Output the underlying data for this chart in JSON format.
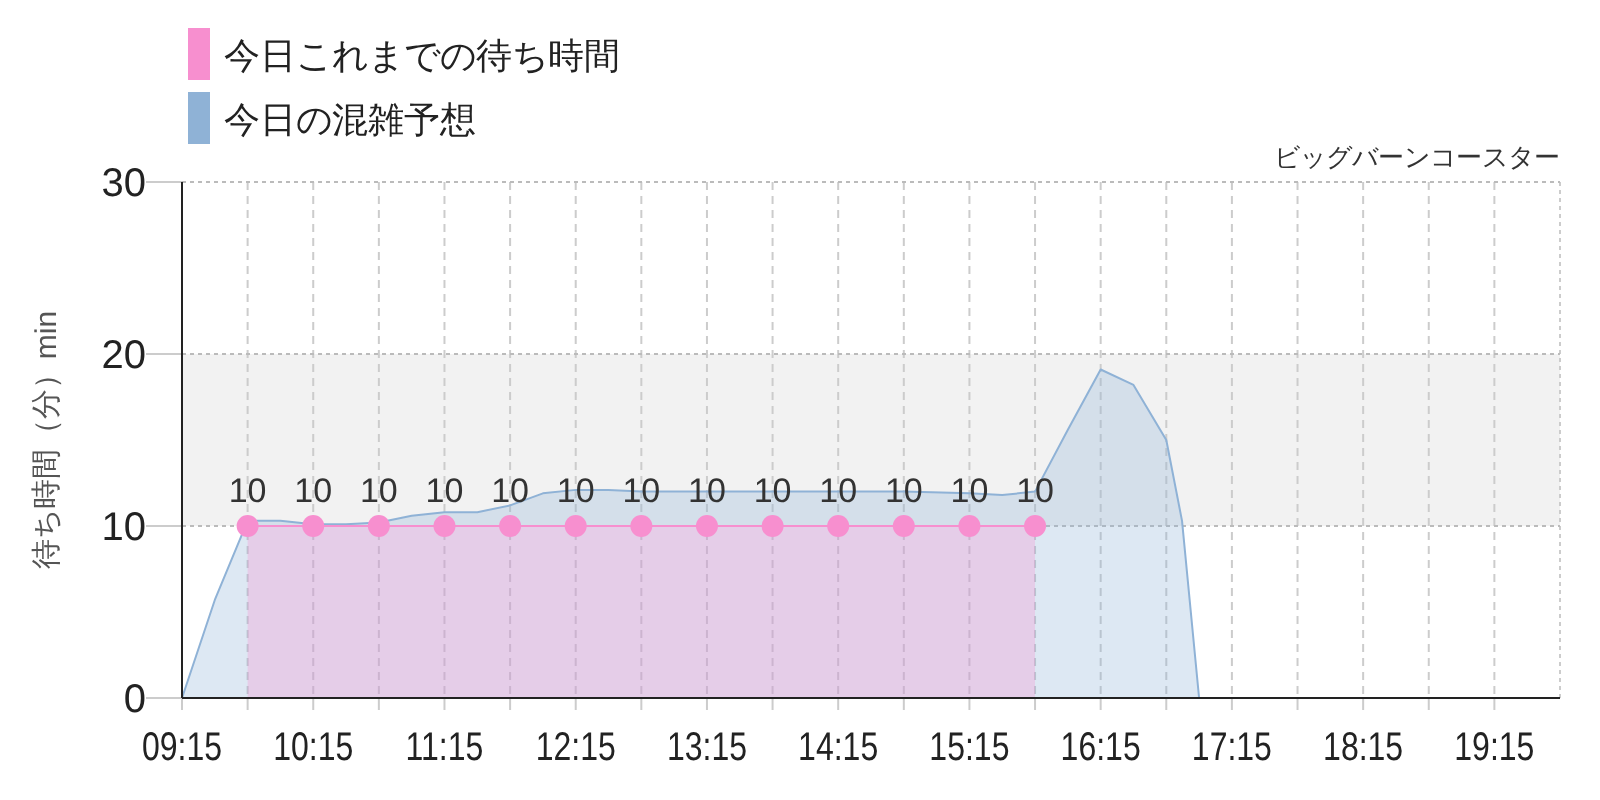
{
  "chart_data": {
    "type": "area",
    "subtitle": "ビッグバーンコースター",
    "ylabel": "待ち時間（分）min",
    "xlim": [
      9.25,
      19.75
    ],
    "ylim": [
      0,
      30
    ],
    "yticks": [
      0,
      10,
      20,
      30
    ],
    "xticks": [
      {
        "value": 9.25,
        "label": "09:15"
      },
      {
        "value": 9.75,
        "label": null
      },
      {
        "value": 10.25,
        "label": "10:15"
      },
      {
        "value": 10.75,
        "label": null
      },
      {
        "value": 11.25,
        "label": "11:15"
      },
      {
        "value": 11.75,
        "label": null
      },
      {
        "value": 12.25,
        "label": "12:15"
      },
      {
        "value": 12.75,
        "label": null
      },
      {
        "value": 13.25,
        "label": "13:15"
      },
      {
        "value": 13.75,
        "label": null
      },
      {
        "value": 14.25,
        "label": "14:15"
      },
      {
        "value": 14.75,
        "label": null
      },
      {
        "value": 15.25,
        "label": "15:15"
      },
      {
        "value": 15.75,
        "label": null
      },
      {
        "value": 16.25,
        "label": "16:15"
      },
      {
        "value": 16.75,
        "label": null
      },
      {
        "value": 17.25,
        "label": "17:15"
      },
      {
        "value": 17.75,
        "label": null
      },
      {
        "value": 18.25,
        "label": "18:15"
      },
      {
        "value": 18.75,
        "label": null
      },
      {
        "value": 19.25,
        "label": "19:15"
      }
    ],
    "grid": true,
    "legend": "top left",
    "bands": [
      {
        "axis": "y",
        "from": 10,
        "to": 20,
        "color": "#f2f2f2"
      }
    ],
    "series": [
      {
        "name": "今日の混雑予想",
        "color": "#8fb2d6",
        "marker": "none",
        "x": [
          9.25,
          9.5,
          9.75,
          10.0,
          10.25,
          10.5,
          10.75,
          11.0,
          11.25,
          11.5,
          11.75,
          12.0,
          12.25,
          12.5,
          12.75,
          13.25,
          13.75,
          14.25,
          14.75,
          15.25,
          15.5,
          15.75,
          16.0,
          16.25,
          16.5,
          16.75,
          16.87,
          17.0,
          17.5,
          18.0,
          18.5,
          19.0,
          19.75
        ],
        "values": [
          0,
          5.7,
          10.3,
          10.3,
          10.1,
          10.1,
          10.2,
          10.6,
          10.8,
          10.8,
          11.2,
          11.9,
          12.1,
          12.1,
          12,
          12,
          12,
          12,
          12,
          11.9,
          11.8,
          12,
          15.6,
          19.1,
          18.2,
          15,
          10.3,
          0,
          0,
          0,
          0,
          0,
          0
        ]
      },
      {
        "name": "今日これまでの待ち時間",
        "color": "#f78fcf",
        "marker": "circle",
        "x": [
          9.75,
          10.25,
          10.75,
          11.25,
          11.75,
          12.25,
          12.75,
          13.25,
          13.75,
          14.25,
          14.75,
          15.25,
          15.75
        ],
        "values": [
          10,
          10,
          10,
          10,
          10,
          10,
          10,
          10,
          10,
          10,
          10,
          10,
          10
        ],
        "value_labels": [
          "10",
          "10",
          "10",
          "10",
          "10",
          "10",
          "10",
          "10",
          "10",
          "10",
          "10",
          "10",
          "10"
        ]
      }
    ]
  }
}
